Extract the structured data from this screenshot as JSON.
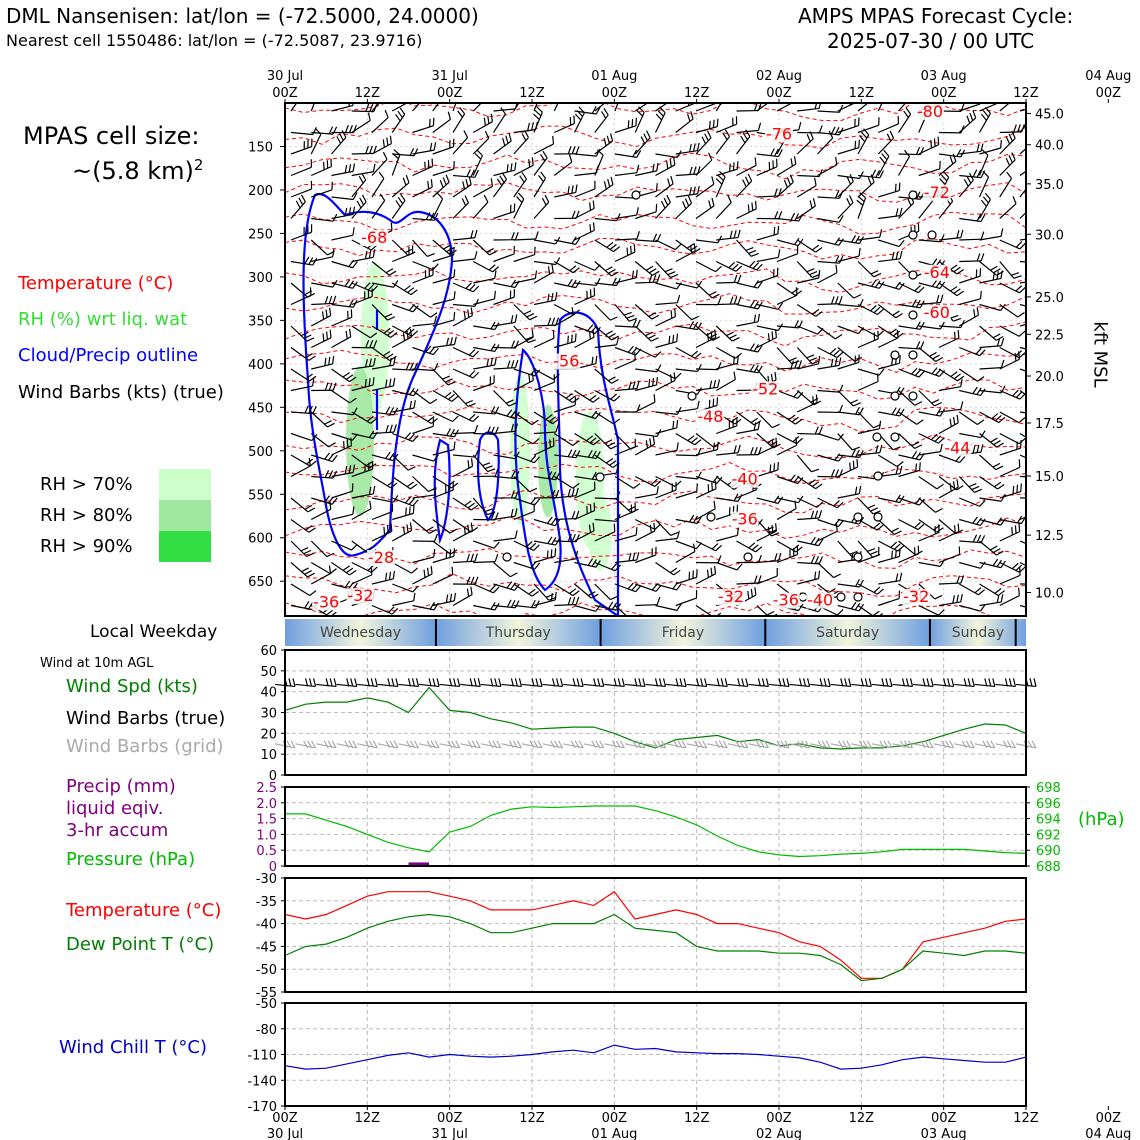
{
  "header": {
    "station_title": "DML Nansenisen: lat/lon = (-72.5000, 24.0000)",
    "nearest_cell": "Nearest cell 1550486: lat/lon = (-72.5087, 23.9716)",
    "cycle_title": "AMPS MPAS Forecast Cycle:",
    "cycle_time": "2025-07-30 / 00 UTC"
  },
  "cell_size": {
    "label": "MPAS cell size:",
    "value": "~(5.8 km)",
    "exponent": "2"
  },
  "legend": {
    "temperature": "Temperature (°C)",
    "rh": "RH (%) wrt liq. wat",
    "cloud": "Cloud/Precip outline",
    "wind": "Wind Barbs (kts) (true)",
    "rh70": "RH > 70%",
    "rh80": "RH > 80%",
    "rh90": "RH > 90%"
  },
  "colors": {
    "temperature": "#ff0000",
    "rh": "#33dd33",
    "cloud": "#0000ff",
    "rh70": "#ccffcc",
    "rh80": "#a0e8a0",
    "rh90": "#33dd44",
    "dewpoint": "#008000",
    "windchill": "#0000cc",
    "pressure": "#00bb00",
    "precip": "#800080",
    "grid_barbs": "#aaaaaa"
  },
  "time_axis": {
    "top_labels": [
      {
        "hour": "00Z",
        "date": "30 Jul"
      },
      {
        "hour": "12Z",
        "date": ""
      },
      {
        "hour": "00Z",
        "date": "31 Jul"
      },
      {
        "hour": "12Z",
        "date": ""
      },
      {
        "hour": "00Z",
        "date": "01 Aug"
      },
      {
        "hour": "12Z",
        "date": ""
      },
      {
        "hour": "00Z",
        "date": "02 Aug"
      },
      {
        "hour": "12Z",
        "date": ""
      },
      {
        "hour": "00Z",
        "date": "03 Aug"
      },
      {
        "hour": "12Z",
        "date": ""
      },
      {
        "hour": "00Z",
        "date": "04 Aug"
      }
    ],
    "weekday_label": "Local Weekday",
    "weekdays": [
      "Wednesday",
      "Thursday",
      "Friday",
      "Saturday",
      "Sunday"
    ]
  },
  "chart_data": [
    {
      "type": "heatmap",
      "name_tag": "time-height cross section",
      "x_hours": [
        0,
        108
      ],
      "y_label_left": "",
      "y_label_right": "kft MSL",
      "pressure_ticks": [
        150,
        200,
        250,
        300,
        350,
        400,
        450,
        500,
        550,
        600,
        650
      ],
      "ylim_hpa": [
        100,
        690
      ],
      "height_ticks": [
        {
          "label": "45.0",
          "p": 112
        },
        {
          "label": "40.0",
          "p": 148
        },
        {
          "label": "35.0",
          "p": 193
        },
        {
          "label": "30.0",
          "p": 251
        },
        {
          "label": "25.0",
          "p": 323
        },
        {
          "label": "22.5",
          "p": 366
        },
        {
          "label": "20.0",
          "p": 414
        },
        {
          "label": "17.5",
          "p": 468
        },
        {
          "label": "15.0",
          "p": 529
        },
        {
          "label": "12.5",
          "p": 597
        },
        {
          "label": "10.0",
          "p": 663
        }
      ],
      "temperature_contour_labels": [
        {
          "text": "-80",
          "t": 94,
          "p": 116
        },
        {
          "text": "-76",
          "t": 72,
          "p": 142
        },
        {
          "text": "-72",
          "t": 95,
          "p": 209
        },
        {
          "text": "-68",
          "t": 13,
          "p": 261
        },
        {
          "text": "-64",
          "t": 95,
          "p": 301
        },
        {
          "text": "-60",
          "t": 95,
          "p": 347
        },
        {
          "text": "-56",
          "t": 41,
          "p": 403
        },
        {
          "text": "-52",
          "t": 70,
          "p": 435
        },
        {
          "text": "-48",
          "t": 62,
          "p": 467
        },
        {
          "text": "-44",
          "t": 98,
          "p": 503
        },
        {
          "text": "-40",
          "t": 67,
          "p": 539
        },
        {
          "text": "-36",
          "t": 67,
          "p": 585
        },
        {
          "text": "-28",
          "t": 14,
          "p": 629
        },
        {
          "text": "-36",
          "t": 6,
          "p": 680
        },
        {
          "text": "-32",
          "t": 11,
          "p": 673
        },
        {
          "text": "-32",
          "t": 65,
          "p": 674
        },
        {
          "text": "-36",
          "t": 73,
          "p": 678
        },
        {
          "text": "-40",
          "t": 78,
          "p": 678
        },
        {
          "text": "-32",
          "t": 92,
          "p": 674
        }
      ]
    },
    {
      "type": "line",
      "name_tag": "10m wind",
      "title": "Wind at 10m AGL",
      "ylim": [
        0,
        60
      ],
      "yticks": [
        0,
        10,
        20,
        30,
        40,
        50,
        60
      ],
      "series": [
        {
          "name": "Wind Spd (kts)",
          "color": "#008000",
          "x": [
            0,
            3,
            6,
            9,
            12,
            15,
            18,
            21,
            24,
            27,
            30,
            33,
            36,
            39,
            42,
            45,
            48,
            51,
            54,
            57,
            60,
            63,
            66,
            69,
            72,
            75,
            78,
            81,
            84,
            87,
            90,
            93,
            96,
            99,
            102,
            105,
            108
          ],
          "values": [
            31,
            34,
            35,
            35,
            37,
            35,
            30,
            42,
            31,
            30,
            27,
            25,
            22,
            22.5,
            23,
            23,
            20,
            16,
            13,
            17,
            18,
            19,
            16,
            17,
            14,
            15,
            13,
            12.5,
            13,
            13,
            14,
            16,
            19,
            22,
            24.5,
            24,
            20
          ]
        },
        {
          "name": "Wind Barbs (true)",
          "color": "#000000"
        },
        {
          "name": "Wind Barbs (grid)",
          "color": "#aaaaaa"
        }
      ]
    },
    {
      "type": "line",
      "name_tag": "precip and pressure",
      "series": [
        {
          "name": "Precip (mm)",
          "extra": [
            "liquid eqiv.",
            "3-hr accum"
          ],
          "color": "#800080",
          "x": [
            18,
            21
          ],
          "values": [
            0.05,
            0.05
          ]
        },
        {
          "name": "Pressure (hPa)",
          "color": "#00bb00",
          "x": [
            0,
            3,
            6,
            9,
            12,
            15,
            18,
            21,
            24,
            27,
            30,
            33,
            36,
            39,
            42,
            45,
            48,
            51,
            54,
            57,
            60,
            63,
            66,
            69,
            72,
            75,
            78,
            81,
            84,
            87,
            90,
            93,
            96,
            99,
            102,
            105,
            108
          ],
          "values": [
            694.6,
            694.6,
            693.8,
            693,
            692,
            691,
            690.3,
            689.8,
            692.3,
            693,
            694.4,
            695.2,
            695.5,
            695.4,
            695.5,
            695.6,
            695.6,
            695.6,
            695,
            694.2,
            693.2,
            691.8,
            690.6,
            689.8,
            689.4,
            689.2,
            689.3,
            689.5,
            689.6,
            689.8,
            690.1,
            690.1,
            690.1,
            690.1,
            689.9,
            689.7,
            689.6
          ]
        }
      ],
      "ylim_left": [
        0,
        2.5
      ],
      "yticks_left": [
        "0",
        "0.5",
        "1.0",
        "1.5",
        "2.0",
        "2.5"
      ],
      "ylim_right": [
        688,
        698
      ],
      "yticks_right": [
        "688",
        "690",
        "692",
        "694",
        "696",
        "698"
      ],
      "ylabel_right": "(hPa)"
    },
    {
      "type": "line",
      "name_tag": "temperature and dew point",
      "ylim": [
        -55,
        -30
      ],
      "yticks": [
        "-55",
        "-50",
        "-45",
        "-40",
        "-35",
        "-30"
      ],
      "series": [
        {
          "name": "Temperature (°C)",
          "color": "#ff0000",
          "x": [
            0,
            3,
            6,
            9,
            12,
            15,
            18,
            21,
            24,
            27,
            30,
            33,
            36,
            39,
            42,
            45,
            48,
            51,
            54,
            57,
            60,
            63,
            66,
            69,
            72,
            75,
            78,
            81,
            84,
            87,
            90,
            93,
            96,
            99,
            102,
            105,
            108
          ],
          "values": [
            -38,
            -39,
            -38,
            -36,
            -34,
            -33,
            -33,
            -33,
            -34,
            -35,
            -37,
            -37,
            -37,
            -36,
            -35,
            -36,
            -33,
            -39,
            -38,
            -37,
            -38,
            -40,
            -40,
            -41,
            -42,
            -44,
            -45,
            -48,
            -52,
            -52,
            -50,
            -44,
            -43,
            -42,
            -41,
            -39.5,
            -39
          ]
        },
        {
          "name": "Dew Point T (°C)",
          "color": "#008000",
          "x": [
            0,
            3,
            6,
            9,
            12,
            15,
            18,
            21,
            24,
            27,
            30,
            33,
            36,
            39,
            42,
            45,
            48,
            51,
            54,
            57,
            60,
            63,
            66,
            69,
            72,
            75,
            78,
            81,
            84,
            87,
            90,
            93,
            96,
            99,
            102,
            105,
            108
          ],
          "values": [
            -47,
            -45,
            -44.5,
            -43,
            -41,
            -39.5,
            -38.5,
            -38,
            -38.5,
            -40,
            -42,
            -42,
            -41,
            -40,
            -40,
            -40,
            -38,
            -41,
            -41.5,
            -42,
            -45,
            -46,
            -46,
            -46,
            -46.5,
            -46.5,
            -47,
            -49,
            -52.5,
            -52,
            -50,
            -46,
            -46.5,
            -47,
            -46,
            -46,
            -46.5
          ]
        }
      ]
    },
    {
      "type": "line",
      "name_tag": "wind chill",
      "ylim": [
        -170,
        -50
      ],
      "yticks": [
        "-170",
        "-140",
        "-110",
        "-80",
        "-50"
      ],
      "series": [
        {
          "name": "Wind Chill T (°C)",
          "color": "#0000cc",
          "x": [
            0,
            3,
            6,
            9,
            12,
            15,
            18,
            21,
            24,
            27,
            30,
            33,
            36,
            39,
            42,
            45,
            48,
            51,
            54,
            57,
            60,
            63,
            66,
            69,
            72,
            75,
            78,
            81,
            84,
            87,
            90,
            93,
            96,
            99,
            102,
            105,
            108
          ],
          "values": [
            -123,
            -127,
            -126,
            -121,
            -116,
            -111,
            -108,
            -113,
            -110,
            -112,
            -113,
            -112,
            -110,
            -107,
            -105,
            -108,
            -99,
            -104,
            -103,
            -107,
            -108,
            -109,
            -109,
            -110,
            -112,
            -114,
            -119,
            -127,
            -126,
            -122,
            -116,
            -113,
            -115,
            -117,
            -119,
            -119,
            -113
          ]
        }
      ]
    }
  ]
}
